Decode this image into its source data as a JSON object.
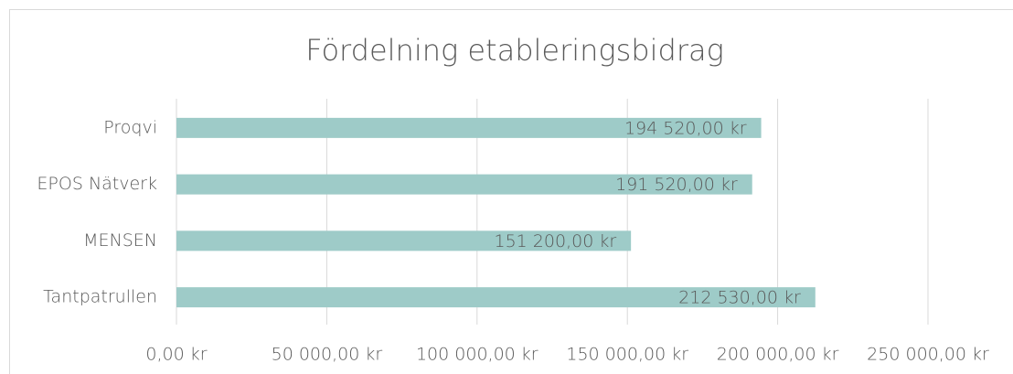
{
  "chart_data": {
    "type": "bar",
    "orientation": "horizontal",
    "title": "Fördelning etableringsbidrag",
    "categories": [
      "Proqvi",
      "EPOS Nätverk",
      "MENSEN",
      "Tantpatrullen"
    ],
    "values": [
      194520,
      191520,
      151200,
      212530
    ],
    "value_labels": [
      "194 520,00 kr",
      "191 520,00 kr",
      "151 200,00 kr",
      "212 530,00 kr"
    ],
    "color": "#9ecbc8",
    "xlim": [
      0,
      250000
    ],
    "xticks": [
      {
        "value": 0,
        "label": "0,00 kr"
      },
      {
        "value": 50000,
        "label": "50 000,00 kr"
      },
      {
        "value": 100000,
        "label": "100 000,00 kr"
      },
      {
        "value": 150000,
        "label": "150 000,00 kr"
      },
      {
        "value": 200000,
        "label": "200 000,00 kr"
      },
      {
        "value": 250000,
        "label": "250 000,00 kr"
      }
    ],
    "grid": true
  }
}
